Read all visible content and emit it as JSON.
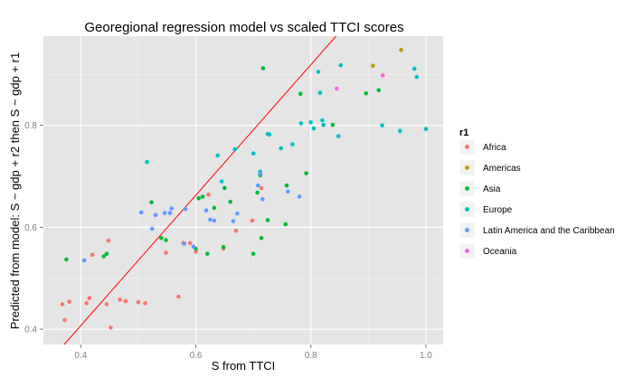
{
  "chart_data": {
    "type": "scatter",
    "title": "Georegional regression model vs scaled TTCI scores",
    "xlabel": "S from TTCI",
    "ylabel": "Predicted from model: S ~ gdp + r2 then S ~ gdp + r1",
    "xlim": [
      0.335,
      1.03
    ],
    "ylim": [
      0.37,
      0.975
    ],
    "xticks": [
      0.4,
      0.6,
      0.8,
      1.0
    ],
    "xtick_labels": [
      "0.4",
      "0.6",
      "0.8",
      "1.0"
    ],
    "yticks": [
      0.4,
      0.6,
      0.8
    ],
    "ytick_labels": [
      "0.4",
      "0.6",
      "0.8"
    ],
    "grid": true,
    "legend": {
      "title": "r1",
      "position": "right"
    },
    "reference_line": {
      "label": "",
      "color": "#ff0000",
      "slope": 1.28,
      "intercept": -0.105
    },
    "series": [
      {
        "name": "Africa",
        "color": "#f8766d",
        "points": [
          [
            0.368,
            0.449
          ],
          [
            0.372,
            0.418
          ],
          [
            0.38,
            0.454
          ],
          [
            0.41,
            0.451
          ],
          [
            0.415,
            0.461
          ],
          [
            0.42,
            0.546
          ],
          [
            0.445,
            0.449
          ],
          [
            0.448,
            0.574
          ],
          [
            0.452,
            0.403
          ],
          [
            0.468,
            0.458
          ],
          [
            0.478,
            0.455
          ],
          [
            0.5,
            0.453
          ],
          [
            0.512,
            0.451
          ],
          [
            0.548,
            0.55
          ],
          [
            0.57,
            0.464
          ],
          [
            0.578,
            0.569
          ],
          [
            0.59,
            0.569
          ],
          [
            0.6,
            0.552
          ],
          [
            0.622,
            0.664
          ],
          [
            0.648,
            0.558
          ],
          [
            0.67,
            0.593
          ],
          [
            0.698,
            0.613
          ],
          [
            0.714,
            0.677
          ]
        ]
      },
      {
        "name": "Americas",
        "color": "#b79f00",
        "points": [
          [
            0.908,
            0.917
          ],
          [
            0.957,
            0.948
          ]
        ]
      },
      {
        "name": "Asia",
        "color": "#00ba38",
        "points": [
          [
            0.375,
            0.537
          ],
          [
            0.44,
            0.543
          ],
          [
            0.445,
            0.548
          ],
          [
            0.523,
            0.649
          ],
          [
            0.54,
            0.579
          ],
          [
            0.548,
            0.575
          ],
          [
            0.6,
            0.558
          ],
          [
            0.605,
            0.657
          ],
          [
            0.612,
            0.66
          ],
          [
            0.62,
            0.548
          ],
          [
            0.632,
            0.638
          ],
          [
            0.648,
            0.561
          ],
          [
            0.65,
            0.677
          ],
          [
            0.66,
            0.65
          ],
          [
            0.7,
            0.548
          ],
          [
            0.707,
            0.668
          ],
          [
            0.712,
            0.702
          ],
          [
            0.714,
            0.579
          ],
          [
            0.717,
            0.912
          ],
          [
            0.725,
            0.614
          ],
          [
            0.756,
            0.606
          ],
          [
            0.758,
            0.682
          ],
          [
            0.782,
            0.862
          ],
          [
            0.792,
            0.706
          ],
          [
            0.838,
            0.801
          ],
          [
            0.896,
            0.863
          ],
          [
            0.918,
            0.869
          ]
        ]
      },
      {
        "name": "Europe",
        "color": "#00bfc4",
        "points": [
          [
            0.515,
            0.728
          ],
          [
            0.638,
            0.741
          ],
          [
            0.645,
            0.69
          ],
          [
            0.668,
            0.753
          ],
          [
            0.7,
            0.745
          ],
          [
            0.712,
            0.709
          ],
          [
            0.725,
            0.783
          ],
          [
            0.728,
            0.782
          ],
          [
            0.748,
            0.755
          ],
          [
            0.768,
            0.763
          ],
          [
            0.783,
            0.804
          ],
          [
            0.8,
            0.806
          ],
          [
            0.805,
            0.794
          ],
          [
            0.813,
            0.905
          ],
          [
            0.816,
            0.864
          ],
          [
            0.82,
            0.81
          ],
          [
            0.822,
            0.801
          ],
          [
            0.848,
            0.779
          ],
          [
            0.852,
            0.918
          ],
          [
            0.924,
            0.8
          ],
          [
            0.955,
            0.789
          ],
          [
            0.98,
            0.911
          ],
          [
            0.984,
            0.895
          ],
          [
            1.0,
            0.793
          ]
        ]
      },
      {
        "name": "Latin America and the Caribbean",
        "color": "#619cff",
        "points": [
          [
            0.406,
            0.535
          ],
          [
            0.505,
            0.629
          ],
          [
            0.524,
            0.597
          ],
          [
            0.53,
            0.624
          ],
          [
            0.546,
            0.628
          ],
          [
            0.555,
            0.628
          ],
          [
            0.558,
            0.637
          ],
          [
            0.58,
            0.568
          ],
          [
            0.582,
            0.636
          ],
          [
            0.596,
            0.562
          ],
          [
            0.618,
            0.633
          ],
          [
            0.625,
            0.615
          ],
          [
            0.632,
            0.613
          ],
          [
            0.665,
            0.612
          ],
          [
            0.672,
            0.627
          ],
          [
            0.708,
            0.682
          ],
          [
            0.712,
            0.705
          ],
          [
            0.716,
            0.655
          ],
          [
            0.76,
            0.67
          ],
          [
            0.78,
            0.66
          ]
        ]
      },
      {
        "name": "Oceania",
        "color": "#f564e3",
        "points": [
          [
            0.845,
            0.872
          ],
          [
            0.925,
            0.898
          ]
        ]
      }
    ]
  }
}
